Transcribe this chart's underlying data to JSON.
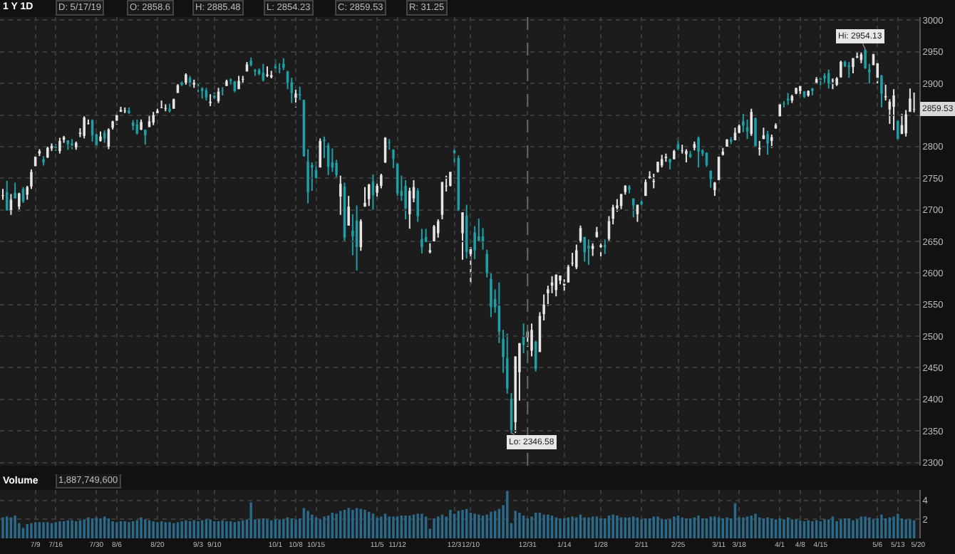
{
  "chart_data": [
    {
      "type": "candlestick",
      "title": "1 Y 1D",
      "annotations": [
        "D: 5/17/19",
        "O: 2858.6",
        "H: 2885.48",
        "L: 2854.23",
        "C: 2859.53",
        "R: 31.25",
        {
          "text": "Hi: 2954.13",
          "y": 2954.13
        },
        {
          "text": "Lo: 2346.58",
          "y": 2346.58
        },
        {
          "text": "2859.53",
          "y": 2859.53
        }
      ],
      "categories": [
        null,
        null,
        null,
        null,
        null,
        null,
        null,
        null,
        "7/9",
        null,
        null,
        null,
        null,
        "7/16",
        null,
        null,
        null,
        null,
        null,
        null,
        null,
        null,
        null,
        "7/30",
        null,
        null,
        null,
        null,
        "8/6",
        null,
        null,
        null,
        null,
        null,
        null,
        null,
        null,
        null,
        "8/20",
        null,
        null,
        null,
        null,
        null,
        null,
        null,
        null,
        null,
        "9/3",
        null,
        null,
        null,
        "9/10",
        null,
        null,
        null,
        null,
        null,
        null,
        null,
        null,
        null,
        null,
        null,
        null,
        null,
        null,
        "10/1",
        null,
        null,
        null,
        null,
        "10/8",
        null,
        null,
        null,
        null,
        "10/15",
        null,
        null,
        null,
        null,
        null,
        null,
        null,
        null,
        null,
        null,
        null,
        null,
        null,
        null,
        "11/5",
        null,
        null,
        null,
        null,
        "11/12",
        null,
        null,
        null,
        null,
        null,
        null,
        null,
        null,
        null,
        null,
        null,
        null,
        null,
        "12/3",
        null,
        null,
        null,
        "12/10",
        null,
        null,
        null,
        null,
        null,
        null,
        null,
        null,
        null,
        null,
        null,
        null,
        null,
        "12/31",
        null,
        null,
        null,
        null,
        null,
        null,
        null,
        null,
        "1/14",
        null,
        null,
        null,
        null,
        null,
        null,
        null,
        null,
        "1/28",
        null,
        null,
        null,
        null,
        null,
        null,
        null,
        null,
        null,
        "2/11",
        null,
        null,
        null,
        null,
        null,
        null,
        null,
        null,
        "2/25",
        null,
        null,
        null,
        null,
        null,
        null,
        null,
        null,
        null,
        "3/11",
        null,
        null,
        null,
        null,
        "3/18",
        null,
        null,
        null,
        null,
        null,
        null,
        null,
        null,
        null,
        "4/1",
        null,
        null,
        null,
        null,
        "4/8",
        null,
        null,
        null,
        null,
        "4/15",
        null,
        null,
        null,
        null,
        null,
        null,
        null,
        null,
        null,
        null,
        null,
        null,
        null,
        "5/6",
        null,
        null,
        null,
        null,
        "5/13",
        null,
        null,
        null,
        null,
        "5/20"
      ],
      "ohlc": [
        [
          2722,
          2733,
          2716,
          2723
        ],
        [
          2728,
          2746,
          2699,
          2699
        ],
        [
          2699,
          2725,
          2692,
          2716
        ],
        [
          2727,
          2743,
          2718,
          2718
        ],
        [
          2705,
          2727,
          2698,
          2726
        ],
        [
          2733,
          2736,
          2711,
          2713
        ],
        [
          2724,
          2738,
          2716,
          2736
        ],
        [
          2737,
          2764,
          2733,
          2760
        ],
        [
          2769,
          2785,
          2769,
          2784
        ],
        [
          2789,
          2796,
          2785,
          2793
        ],
        [
          2780,
          2785,
          2770,
          2775
        ],
        [
          2783,
          2800,
          2782,
          2798
        ],
        [
          2797,
          2805,
          2793,
          2801
        ],
        [
          2800,
          2804,
          2793,
          2798
        ],
        [
          2793,
          2814,
          2789,
          2809
        ],
        [
          2811,
          2817,
          2806,
          2815
        ],
        [
          2810,
          2810,
          2795,
          2804
        ],
        [
          2805,
          2812,
          2796,
          2802
        ],
        [
          2799,
          2808,
          2795,
          2806
        ],
        [
          2820,
          2829,
          2815,
          2822
        ],
        [
          2817,
          2848,
          2813,
          2846
        ],
        [
          2836,
          2843,
          2835,
          2837
        ],
        [
          2842,
          2843,
          2808,
          2818
        ],
        [
          2819,
          2821,
          2799,
          2802
        ],
        [
          2809,
          2824,
          2808,
          2816
        ],
        [
          2822,
          2826,
          2806,
          2813
        ],
        [
          2800,
          2829,
          2796,
          2827
        ],
        [
          2830,
          2841,
          2827,
          2840
        ],
        [
          2841,
          2853,
          2835,
          2850
        ],
        [
          2855,
          2863,
          2855,
          2858
        ],
        [
          2856,
          2862,
          2853,
          2857
        ],
        [
          2857,
          2862,
          2852,
          2853
        ],
        [
          2838,
          2842,
          2826,
          2833
        ],
        [
          2835,
          2843,
          2819,
          2821
        ],
        [
          2827,
          2843,
          2826,
          2839
        ],
        [
          2827,
          2827,
          2803,
          2818
        ],
        [
          2831,
          2850,
          2831,
          2840
        ],
        [
          2838,
          2855,
          2834,
          2850
        ],
        [
          2853,
          2860,
          2850,
          2857
        ],
        [
          2861,
          2873,
          2861,
          2862
        ],
        [
          2860,
          2867,
          2856,
          2861
        ],
        [
          2860,
          2868,
          2854,
          2856
        ],
        [
          2860,
          2876,
          2860,
          2875
        ],
        [
          2885,
          2899,
          2885,
          2897
        ],
        [
          2901,
          2903,
          2896,
          2898
        ],
        [
          2901,
          2916,
          2898,
          2914
        ],
        [
          2909,
          2912,
          2895,
          2901
        ],
        [
          2898,
          2906,
          2893,
          2901
        ],
        [
          2897,
          2900,
          2886,
          2896
        ],
        [
          2892,
          2894,
          2876,
          2888
        ],
        [
          2889,
          2893,
          2873,
          2878
        ],
        [
          2869,
          2883,
          2864,
          2871
        ],
        [
          2881,
          2886,
          2875,
          2877
        ],
        [
          2872,
          2893,
          2869,
          2887
        ],
        [
          2889,
          2894,
          2881,
          2888
        ],
        [
          2896,
          2906,
          2896,
          2904
        ],
        [
          2906,
          2908,
          2898,
          2904
        ],
        [
          2903,
          2904,
          2886,
          2888
        ],
        [
          2891,
          2912,
          2891,
          2904
        ],
        [
          2906,
          2912,
          2899,
          2907
        ],
        [
          2919,
          2934,
          2919,
          2930
        ],
        [
          2936,
          2941,
          2927,
          2929
        ],
        [
          2921,
          2923,
          2912,
          2919
        ],
        [
          2921,
          2924,
          2913,
          2915
        ],
        [
          2917,
          2931,
          2903,
          2905
        ],
        [
          2912,
          2927,
          2910,
          2914
        ],
        [
          2910,
          2920,
          2908,
          2913
        ],
        [
          2927,
          2938,
          2917,
          2924
        ],
        [
          2924,
          2932,
          2916,
          2923
        ],
        [
          2931,
          2940,
          2921,
          2925
        ],
        [
          2919,
          2920,
          2891,
          2901
        ],
        [
          2902,
          2909,
          2869,
          2885
        ],
        [
          2877,
          2894,
          2862,
          2884
        ],
        [
          2883,
          2895,
          2874,
          2881
        ],
        [
          2874,
          2874,
          2784,
          2785
        ],
        [
          2776,
          2796,
          2710,
          2728
        ],
        [
          2771,
          2775,
          2730,
          2767
        ],
        [
          2763,
          2776,
          2750,
          2750
        ],
        [
          2767,
          2813,
          2767,
          2809
        ],
        [
          2811,
          2816,
          2782,
          2809
        ],
        [
          2802,
          2806,
          2755,
          2768
        ],
        [
          2775,
          2797,
          2760,
          2767
        ],
        [
          2774,
          2779,
          2749,
          2755
        ],
        [
          2721,
          2754,
          2692,
          2741
        ],
        [
          2737,
          2743,
          2651,
          2656
        ],
        [
          2675,
          2722,
          2675,
          2705
        ],
        [
          2667,
          2693,
          2628,
          2658
        ],
        [
          2683,
          2707,
          2604,
          2641
        ],
        [
          2641,
          2685,
          2635,
          2682
        ],
        [
          2705,
          2736,
          2705,
          2711
        ],
        [
          2717,
          2741,
          2706,
          2740
        ],
        [
          2745,
          2756,
          2700,
          2723
        ],
        [
          2727,
          2744,
          2717,
          2738
        ],
        [
          2738,
          2757,
          2734,
          2755
        ],
        [
          2775,
          2815,
          2774,
          2814
        ],
        [
          2807,
          2812,
          2795,
          2806
        ],
        [
          2795,
          2796,
          2766,
          2781
        ],
        [
          2773,
          2775,
          2722,
          2726
        ],
        [
          2730,
          2754,
          2714,
          2722
        ],
        [
          2738,
          2747,
          2685,
          2702
        ],
        [
          2693,
          2735,
          2670,
          2730
        ],
        [
          2718,
          2747,
          2712,
          2736
        ],
        [
          2730,
          2734,
          2681,
          2690
        ],
        [
          2654,
          2670,
          2631,
          2641
        ],
        [
          2657,
          2670,
          2649,
          2649
        ],
        [
          2633,
          2647,
          2631,
          2636
        ],
        [
          2650,
          2676,
          2650,
          2674
        ],
        [
          2663,
          2685,
          2656,
          2682
        ],
        [
          2692,
          2744,
          2685,
          2744
        ],
        [
          2737,
          2754,
          2729,
          2738
        ],
        [
          2738,
          2760,
          2737,
          2760
        ],
        [
          2794,
          2800,
          2774,
          2790
        ],
        [
          2782,
          2786,
          2698,
          2700
        ],
        [
          2663,
          2696,
          2621,
          2696
        ],
        [
          2691,
          2708,
          2623,
          2633
        ],
        [
          2630,
          2641,
          2583,
          2638
        ],
        [
          2664,
          2674,
          2622,
          2636
        ],
        [
          2658,
          2686,
          2650,
          2651
        ],
        [
          2658,
          2671,
          2637,
          2650
        ],
        [
          2630,
          2637,
          2593,
          2600
        ],
        [
          2591,
          2601,
          2530,
          2546
        ],
        [
          2559,
          2574,
          2537,
          2546
        ],
        [
          2548,
          2585,
          2489,
          2507
        ],
        [
          2496,
          2510,
          2442,
          2467
        ],
        [
          2465,
          2504,
          2409,
          2417
        ],
        [
          2401,
          2410,
          2346.58,
          2351
        ],
        [
          2364,
          2468,
          2347,
          2468
        ],
        [
          2443,
          2489,
          2398,
          2489
        ],
        [
          2499,
          2520,
          2473,
          2486
        ],
        [
          2498,
          2509,
          2483,
          2507
        ],
        [
          2477,
          2520,
          2468,
          2510
        ],
        [
          2491,
          2493,
          2444,
          2448
        ],
        [
          2475,
          2538,
          2475,
          2532
        ],
        [
          2535,
          2566,
          2525,
          2550
        ],
        [
          2568,
          2580,
          2548,
          2574
        ],
        [
          2580,
          2595,
          2568,
          2585
        ],
        [
          2573,
          2598,
          2563,
          2597
        ],
        [
          2588,
          2596,
          2582,
          2596
        ],
        [
          2580,
          2590,
          2571,
          2583
        ],
        [
          2585,
          2613,
          2585,
          2610
        ],
        [
          2615,
          2632,
          2611,
          2616
        ],
        [
          2609,
          2645,
          2606,
          2636
        ],
        [
          2651,
          2675,
          2648,
          2671
        ],
        [
          2657,
          2657,
          2618,
          2633
        ],
        [
          2643,
          2653,
          2613,
          2639
        ],
        [
          2638,
          2647,
          2627,
          2643
        ],
        [
          2657,
          2673,
          2656,
          2665
        ],
        [
          2641,
          2650,
          2625,
          2644
        ],
        [
          2644,
          2653,
          2630,
          2641
        ],
        [
          2654,
          2690,
          2651,
          2682
        ],
        [
          2686,
          2708,
          2677,
          2704
        ],
        [
          2703,
          2717,
          2697,
          2707
        ],
        [
          2706,
          2725,
          2701,
          2725
        ],
        [
          2728,
          2739,
          2724,
          2738
        ],
        [
          2736,
          2739,
          2726,
          2732
        ],
        [
          2718,
          2718,
          2688,
          2707
        ],
        [
          2693,
          2708,
          2681,
          2708
        ],
        [
          2713,
          2718,
          2702,
          2709
        ],
        [
          2722,
          2748,
          2722,
          2744
        ],
        [
          2750,
          2761,
          2749,
          2753
        ],
        [
          2744,
          2757,
          2734,
          2746
        ],
        [
          2760,
          2776,
          2759,
          2776
        ],
        [
          2770,
          2787,
          2767,
          2780
        ],
        [
          2782,
          2789,
          2776,
          2784
        ],
        [
          2780,
          2781,
          2764,
          2775
        ],
        [
          2780,
          2795,
          2780,
          2793
        ],
        [
          2804,
          2814,
          2794,
          2796
        ],
        [
          2793,
          2803,
          2789,
          2794
        ],
        [
          2788,
          2796,
          2775,
          2793
        ],
        [
          2788,
          2793,
          2782,
          2784
        ],
        [
          2798,
          2808,
          2794,
          2804
        ],
        [
          2814,
          2816,
          2767,
          2792
        ],
        [
          2794,
          2796,
          2785,
          2789
        ],
        [
          2790,
          2791,
          2768,
          2771
        ],
        [
          2762,
          2762,
          2735,
          2749
        ],
        [
          2731,
          2744,
          2722,
          2743
        ],
        [
          2747,
          2784,
          2747,
          2784
        ],
        [
          2787,
          2798,
          2786,
          2792
        ],
        [
          2800,
          2812,
          2800,
          2811
        ],
        [
          2811,
          2815,
          2804,
          2808
        ],
        [
          2810,
          2830,
          2810,
          2822
        ],
        [
          2822,
          2835,
          2821,
          2833
        ],
        [
          2840,
          2852,
          2823,
          2833
        ],
        [
          2831,
          2843,
          2812,
          2824
        ],
        [
          2820,
          2860,
          2817,
          2855
        ],
        [
          2845,
          2846,
          2800,
          2801
        ],
        [
          2796,
          2809,
          2786,
          2798
        ],
        [
          2812,
          2830,
          2812,
          2818
        ],
        [
          2820,
          2825,
          2787,
          2805
        ],
        [
          2809,
          2819,
          2798,
          2815
        ],
        [
          2829,
          2837,
          2828,
          2834
        ],
        [
          2848,
          2869,
          2848,
          2867
        ],
        [
          2868,
          2872,
          2862,
          2867
        ],
        [
          2876,
          2885,
          2866,
          2873
        ],
        [
          2873,
          2882,
          2869,
          2880
        ],
        [
          2884,
          2893,
          2883,
          2893
        ],
        [
          2888,
          2896,
          2880,
          2896
        ],
        [
          2887,
          2888,
          2877,
          2879
        ],
        [
          2881,
          2889,
          2879,
          2888
        ],
        [
          2892,
          2893,
          2881,
          2888
        ],
        [
          2901,
          2910,
          2899,
          2907
        ],
        [
          2908,
          2909,
          2897,
          2906
        ],
        [
          2912,
          2916,
          2901,
          2908
        ],
        [
          2916,
          2922,
          2892,
          2900
        ],
        [
          2904,
          2908,
          2891,
          2905
        ],
        [
          2898,
          2910,
          2896,
          2908
        ],
        [
          2910,
          2936,
          2909,
          2934
        ],
        [
          2934,
          2936,
          2926,
          2927
        ],
        [
          2928,
          2934,
          2909,
          2926
        ],
        [
          2926,
          2940,
          2916,
          2940
        ],
        [
          2941,
          2950,
          2940,
          2943
        ],
        [
          2937,
          2949,
          2932,
          2946
        ],
        [
          2953,
          2954.13,
          2923,
          2924
        ],
        [
          2922,
          2931,
          2900,
          2918
        ],
        [
          2929,
          2947,
          2929,
          2946
        ],
        [
          2909,
          2932,
          2900,
          2932
        ],
        [
          2913,
          2913,
          2862,
          2884
        ],
        [
          2878,
          2898,
          2873,
          2880
        ],
        [
          2859,
          2875,
          2836,
          2871
        ],
        [
          2863,
          2891,
          2826,
          2881
        ],
        [
          2841,
          2841,
          2811,
          2812
        ],
        [
          2820,
          2852,
          2820,
          2834
        ],
        [
          2821,
          2858,
          2816,
          2851
        ],
        [
          2855,
          2892,
          2855,
          2876
        ],
        [
          2858.6,
          2885.48,
          2854.23,
          2859.53
        ],
        null
      ],
      "ylim": [
        2295,
        3005
      ],
      "yticks": [
        2300,
        2350,
        2400,
        2450,
        2500,
        2550,
        2600,
        2650,
        2700,
        2750,
        2800,
        {
          "value": 2850,
          "label": null
        },
        2900,
        2950,
        3000
      ],
      "tick_labels": "y",
      "grid": true,
      "ref_lines": [
        {
          "axis": "x",
          "value": "12/31",
          "label": null,
          "line_style": "dashed"
        }
      ]
    },
    {
      "type": "bar",
      "title": "Volume",
      "annotations": [
        "1,887,749,600"
      ],
      "color": "#2a6a8a",
      "categories": [
        null,
        null,
        null,
        null,
        null,
        null,
        null,
        null,
        "7/9",
        null,
        null,
        null,
        null,
        "7/16",
        null,
        null,
        null,
        null,
        null,
        null,
        null,
        null,
        null,
        "7/30",
        null,
        null,
        null,
        null,
        "8/6",
        null,
        null,
        null,
        null,
        null,
        null,
        null,
        null,
        null,
        "8/20",
        null,
        null,
        null,
        null,
        null,
        null,
        null,
        null,
        null,
        "9/3",
        null,
        null,
        null,
        "9/10",
        null,
        null,
        null,
        null,
        null,
        null,
        null,
        null,
        null,
        null,
        null,
        null,
        null,
        null,
        "10/1",
        null,
        null,
        null,
        null,
        "10/8",
        null,
        null,
        null,
        null,
        "10/15",
        null,
        null,
        null,
        null,
        null,
        null,
        null,
        null,
        null,
        null,
        null,
        null,
        null,
        null,
        "11/5",
        null,
        null,
        null,
        null,
        "11/12",
        null,
        null,
        null,
        null,
        null,
        null,
        null,
        null,
        null,
        null,
        null,
        null,
        null,
        "12/3",
        null,
        null,
        null,
        "12/10",
        null,
        null,
        null,
        null,
        null,
        null,
        null,
        null,
        null,
        null,
        null,
        null,
        null,
        "12/31",
        null,
        null,
        null,
        null,
        null,
        null,
        null,
        null,
        "1/14",
        null,
        null,
        null,
        null,
        null,
        null,
        null,
        null,
        "1/28",
        null,
        null,
        null,
        null,
        null,
        null,
        null,
        null,
        null,
        "2/11",
        null,
        null,
        null,
        null,
        null,
        null,
        null,
        null,
        "2/25",
        null,
        null,
        null,
        null,
        null,
        null,
        null,
        null,
        null,
        "3/11",
        null,
        null,
        null,
        null,
        "3/18",
        null,
        null,
        null,
        null,
        null,
        null,
        null,
        null,
        null,
        "4/1",
        null,
        null,
        null,
        null,
        "4/8",
        null,
        null,
        null,
        null,
        "4/15",
        null,
        null,
        null,
        null,
        null,
        null,
        null,
        null,
        null,
        null,
        null,
        null,
        null,
        "5/6",
        null,
        null,
        null,
        null,
        "5/13",
        null,
        null,
        null,
        null,
        "5/20"
      ],
      "values": [
        2.2,
        2.3,
        2.2,
        2.4,
        1.6,
        1.1,
        1.5,
        1.6,
        1.7,
        1.7,
        1.7,
        1.7,
        1.6,
        1.7,
        1.8,
        1.8,
        1.9,
        1.9,
        1.8,
        1.9,
        2.0,
        2.2,
        2.1,
        2.2,
        2.1,
        2.3,
        2.1,
        1.8,
        1.7,
        1.8,
        1.8,
        1.7,
        1.8,
        1.9,
        2.2,
        2.0,
        1.9,
        1.8,
        1.7,
        1.8,
        1.7,
        1.7,
        1.6,
        1.7,
        1.8,
        1.9,
        1.8,
        1.9,
        1.8,
        1.9,
        2.0,
        2.0,
        1.8,
        1.8,
        1.9,
        1.8,
        1.8,
        1.7,
        1.8,
        1.9,
        2.0,
        3.8,
        2.0,
        2.0,
        2.1,
        2.0,
        1.9,
        2.0,
        2.0,
        2.0,
        2.2,
        2.1,
        2.0,
        2.1,
        3.2,
        2.9,
        2.5,
        2.2,
        2.0,
        2.3,
        2.4,
        2.7,
        2.6,
        2.9,
        3.0,
        3.2,
        3.0,
        3.2,
        3.1,
        3.0,
        2.8,
        2.6,
        2.2,
        2.3,
        2.6,
        2.3,
        2.3,
        2.3,
        2.4,
        2.4,
        2.4,
        2.5,
        2.6,
        2.6,
        2.3,
        1.0,
        2.1,
        2.3,
        2.5,
        2.3,
        3.0,
        2.6,
        2.9,
        3.0,
        3.1,
        2.7,
        2.6,
        2.5,
        2.4,
        2.5,
        2.8,
        2.9,
        3.1,
        3.5,
        5.0,
        1.6,
        2.9,
        2.7,
        2.4,
        2.1,
        2.3,
        2.7,
        2.7,
        2.5,
        2.5,
        2.4,
        2.2,
        2.1,
        2.1,
        2.2,
        2.3,
        2.2,
        2.5,
        2.2,
        2.2,
        2.3,
        2.3,
        2.1,
        2.1,
        2.4,
        2.5,
        2.4,
        2.2,
        2.2,
        2.2,
        2.3,
        2.2,
        2.0,
        2.1,
        2.1,
        2.3,
        2.3,
        2.0,
        2.0,
        2.0,
        2.3,
        2.4,
        2.2,
        2.1,
        2.1,
        2.2,
        2.4,
        2.1,
        2.1,
        2.3,
        2.3,
        2.2,
        2.1,
        2.2,
        2.1,
        3.7,
        2.2,
        2.2,
        2.3,
        2.4,
        2.6,
        2.2,
        2.1,
        2.2,
        2.1,
        2.0,
        2.1,
        2.0,
        2.2,
        2.0,
        2.0,
        1.9,
        1.8,
        1.9,
        1.8,
        1.9,
        1.8,
        2.0,
        2.0,
        2.3,
        1.8,
        2.0,
        2.1,
        2.1,
        1.9,
        2.0,
        2.3,
        2.3,
        2.2,
        2.0,
        2.1,
        2.5,
        2.1,
        2.2,
        2.3,
        2.6,
        2.1,
        2.0,
        2.0,
        1.9,
        null
      ],
      "ylim": [
        0,
        5.1
      ],
      "yticks": [
        2,
        4
      ],
      "grid": true
    }
  ]
}
